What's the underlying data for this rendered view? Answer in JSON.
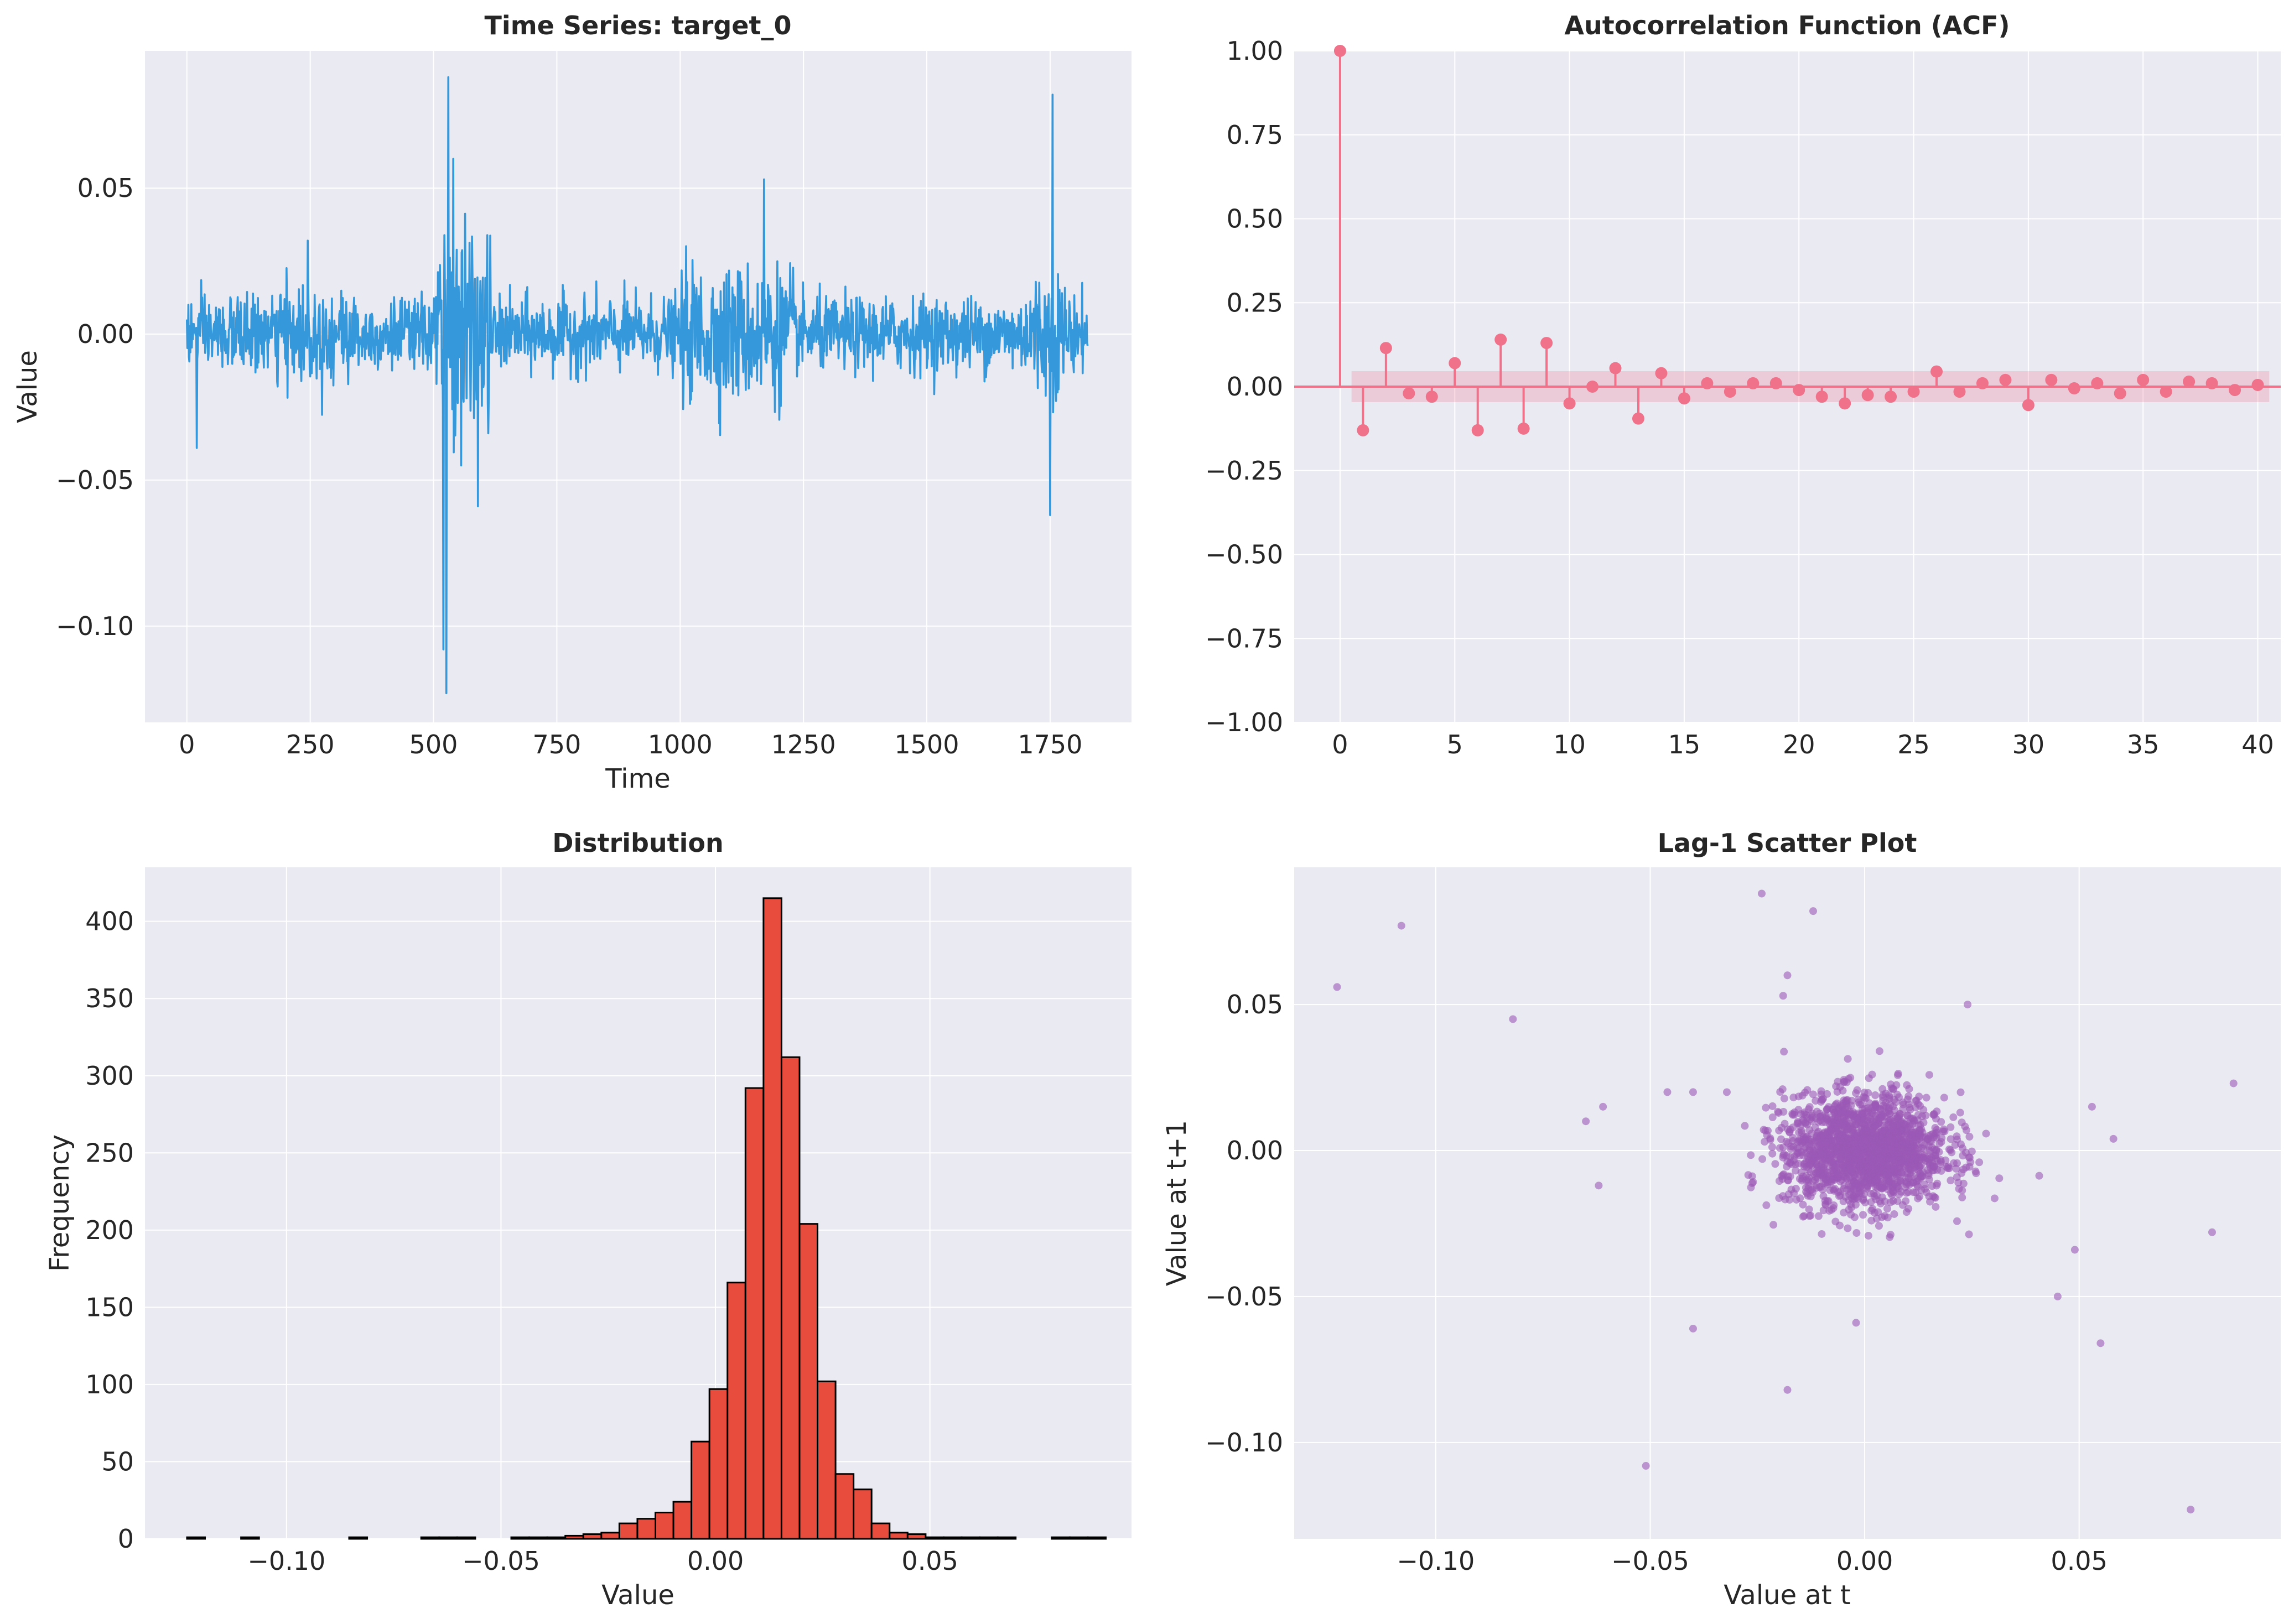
{
  "chart_data": [
    {
      "type": "line",
      "title": "Time Series: target_0",
      "xlabel": "Time",
      "ylabel": "Value",
      "xlim": [
        -85,
        1915
      ],
      "ylim": [
        -0.133,
        0.097
      ],
      "xticks": [
        0,
        250,
        500,
        750,
        1000,
        1250,
        1500,
        1750
      ],
      "xtick_labels": [
        "0",
        "250",
        "500",
        "750",
        "1000",
        "1250",
        "1500",
        "1750"
      ],
      "yticks": [
        -0.1,
        -0.05,
        0.0,
        0.05
      ],
      "ytick_labels": [
        "−0.10",
        "−0.05",
        "0.00",
        "0.05"
      ],
      "grid": true,
      "color": "#3498db",
      "n_points": 1827,
      "approx_key_points": [
        {
          "x": 0,
          "y": 0.005
        },
        {
          "x": 20,
          "y": -0.039
        },
        {
          "x": 245,
          "y": 0.032
        },
        {
          "x": 520,
          "y": -0.108
        },
        {
          "x": 526,
          "y": -0.123
        },
        {
          "x": 530,
          "y": 0.088
        },
        {
          "x": 540,
          "y": 0.06
        },
        {
          "x": 590,
          "y": -0.059
        },
        {
          "x": 1170,
          "y": 0.053
        },
        {
          "x": 1750,
          "y": -0.062
        },
        {
          "x": 1755,
          "y": 0.082
        },
        {
          "x": 1826,
          "y": -0.004
        }
      ]
    },
    {
      "type": "stem",
      "title": "Autocorrelation Function (ACF)",
      "xlabel": "",
      "ylabel": "",
      "xlim": [
        -2,
        41
      ],
      "ylim": [
        -1.0,
        1.0
      ],
      "xticks": [
        0,
        5,
        10,
        15,
        20,
        25,
        30,
        35,
        40
      ],
      "xtick_labels": [
        "0",
        "5",
        "10",
        "15",
        "20",
        "25",
        "30",
        "35",
        "40"
      ],
      "yticks": [
        -1.0,
        -0.75,
        -0.5,
        -0.25,
        0.0,
        0.25,
        0.5,
        0.75,
        1.0
      ],
      "ytick_labels": [
        "−1.00",
        "−0.75",
        "−0.50",
        "−0.25",
        "0.00",
        "0.25",
        "0.50",
        "0.75",
        "1.00"
      ],
      "grid": true,
      "color": "#f0718a",
      "confidence_band": [
        -0.046,
        0.046
      ],
      "lags": [
        0,
        1,
        2,
        3,
        4,
        5,
        6,
        7,
        8,
        9,
        10,
        11,
        12,
        13,
        14,
        15,
        16,
        17,
        18,
        19,
        20,
        21,
        22,
        23,
        24,
        25,
        26,
        27,
        28,
        29,
        30,
        31,
        32,
        33,
        34,
        35,
        36,
        37,
        38,
        39,
        40
      ],
      "values": [
        1.0,
        -0.13,
        0.115,
        -0.02,
        -0.03,
        0.07,
        -0.13,
        0.14,
        -0.125,
        0.13,
        -0.05,
        0.0,
        0.055,
        -0.095,
        0.04,
        -0.035,
        0.01,
        -0.015,
        0.01,
        0.01,
        -0.01,
        -0.03,
        -0.05,
        -0.025,
        -0.03,
        -0.015,
        0.045,
        -0.015,
        0.01,
        0.02,
        -0.055,
        0.02,
        -0.005,
        0.01,
        -0.02,
        0.02,
        -0.015,
        0.015,
        0.01,
        -0.01,
        0.005
      ]
    },
    {
      "type": "bar",
      "subtype": "histogram",
      "title": "Distribution",
      "xlabel": "Value",
      "ylabel": "Frequency",
      "xlim": [
        -0.133,
        0.097
      ],
      "ylim": [
        0,
        435
      ],
      "xticks": [
        -0.1,
        -0.05,
        0.0,
        0.05
      ],
      "xtick_labels": [
        "−0.10",
        "−0.05",
        "0.00",
        "0.05"
      ],
      "yticks": [
        0,
        50,
        100,
        150,
        200,
        250,
        300,
        350,
        400
      ],
      "ytick_labels": [
        "0",
        "50",
        "100",
        "150",
        "200",
        "250",
        "300",
        "350",
        "400"
      ],
      "grid": true,
      "color": "#e74c3c",
      "edgecolor": "#000000",
      "bin_start": -0.1232,
      "bin_width": 0.0042,
      "counts": [
        1,
        0,
        0,
        1,
        0,
        0,
        0,
        0,
        0,
        1,
        0,
        0,
        0,
        1,
        1,
        1,
        0,
        0,
        1,
        1,
        1,
        2,
        3,
        4,
        10,
        13,
        17,
        24,
        63,
        97,
        166,
        292,
        415,
        312,
        204,
        102,
        42,
        32,
        10,
        4,
        3,
        1,
        1,
        1,
        1,
        1,
        0,
        0,
        1,
        1,
        1
      ]
    },
    {
      "type": "scatter",
      "title": "Lag-1 Scatter Plot",
      "xlabel": "Value at t",
      "ylabel": "Value at t+1",
      "xlim": [
        -0.133,
        0.097
      ],
      "ylim": [
        -0.133,
        0.097
      ],
      "xticks": [
        -0.1,
        -0.05,
        0.0,
        0.05
      ],
      "xtick_labels": [
        "−0.10",
        "−0.05",
        "0.00",
        "0.05"
      ],
      "yticks": [
        -0.1,
        -0.05,
        0.0,
        0.05
      ],
      "ytick_labels": [
        "−0.10",
        "−0.05",
        "0.00",
        "0.05"
      ],
      "grid": true,
      "color": "#9b59b6",
      "alpha": 0.6,
      "n_points": 1826,
      "outliers": [
        [
          -0.123,
          0.056
        ],
        [
          -0.108,
          0.077
        ],
        [
          -0.082,
          0.045
        ],
        [
          -0.065,
          0.01
        ],
        [
          -0.062,
          -0.012
        ],
        [
          -0.061,
          0.015
        ],
        [
          -0.046,
          0.02
        ],
        [
          -0.04,
          0.02
        ],
        [
          -0.04,
          -0.061
        ],
        [
          -0.051,
          -0.108
        ],
        [
          -0.024,
          0.088
        ],
        [
          -0.012,
          0.082
        ],
        [
          -0.018,
          0.06
        ],
        [
          -0.019,
          0.053
        ],
        [
          -0.018,
          -0.082
        ],
        [
          -0.002,
          -0.059
        ],
        [
          0.024,
          0.05
        ],
        [
          0.045,
          -0.05
        ],
        [
          0.049,
          -0.034
        ],
        [
          0.053,
          0.015
        ],
        [
          0.055,
          -0.066
        ],
        [
          0.058,
          0.004
        ],
        [
          0.076,
          -0.123
        ],
        [
          0.081,
          -0.028
        ],
        [
          0.086,
          0.023
        ]
      ]
    }
  ]
}
